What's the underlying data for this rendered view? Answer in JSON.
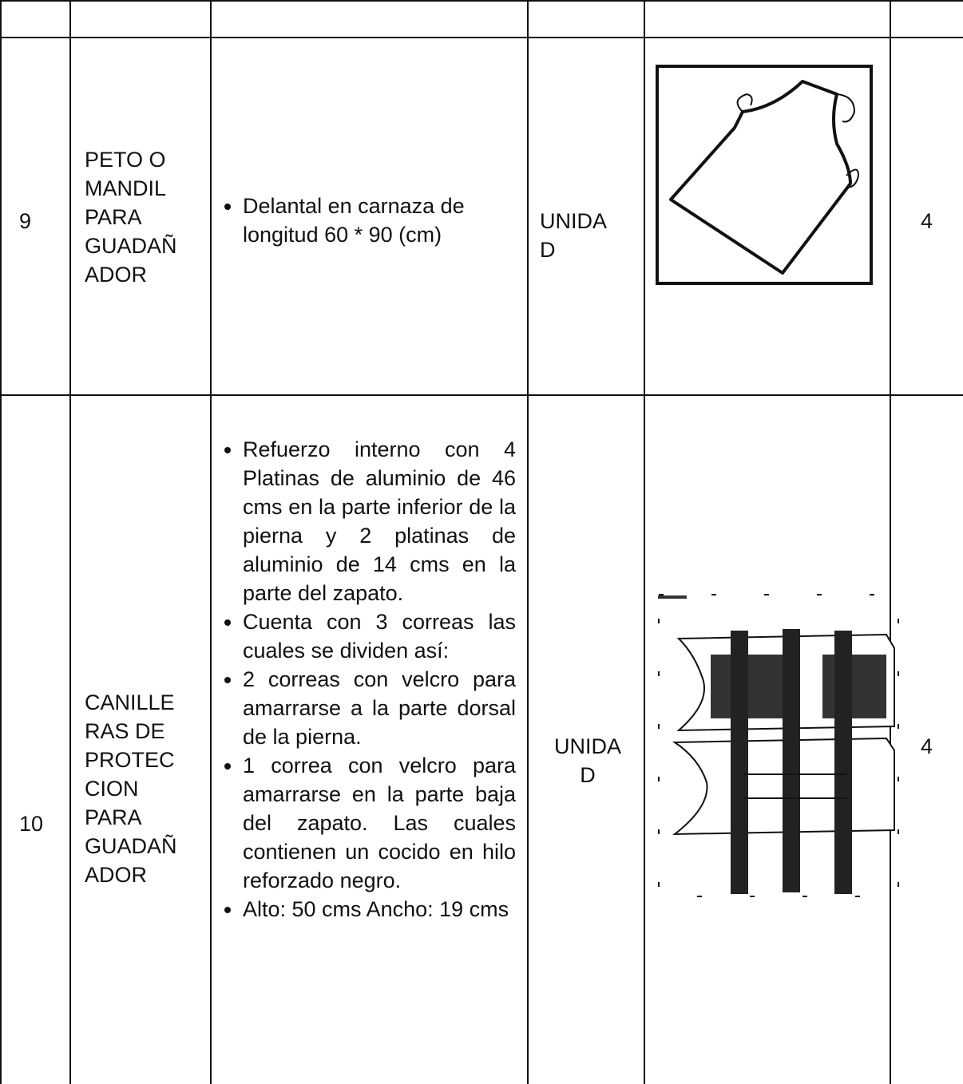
{
  "table": {
    "rows": [
      {
        "number": "9",
        "item": [
          "PETO O",
          "MANDIL",
          "PARA",
          "GUADAÑ",
          "ADOR"
        ],
        "description": [
          "Delantal en carnaza de longitud 60 * 90 (cm)"
        ],
        "unit": [
          "UNIDA",
          "D"
        ],
        "quantity": "4"
      },
      {
        "number": "10",
        "item": [
          "CANILLE",
          "RAS DE",
          "PROTEC",
          "CION",
          "PARA",
          "GUADAÑ",
          "ADOR"
        ],
        "description": [
          "Refuerzo interno con 4 Platinas de aluminio de 46 cms en la parte inferior de la pierna y 2 platinas de aluminio de 14 cms en la parte del zapato.",
          "Cuenta con 3 correas las cuales se dividen así:",
          "2 correas con velcro para amarrarse a la parte dorsal de la pierna.",
          "1 correa con velcro para amarrarse en la parte baja del zapato. Las cuales contienen un cocido en hilo reforzado negro.",
          "Alto: 50 cms Ancho: 19 cms"
        ],
        "unit": [
          "UNIDA",
          "D"
        ],
        "quantity": "4"
      }
    ]
  }
}
